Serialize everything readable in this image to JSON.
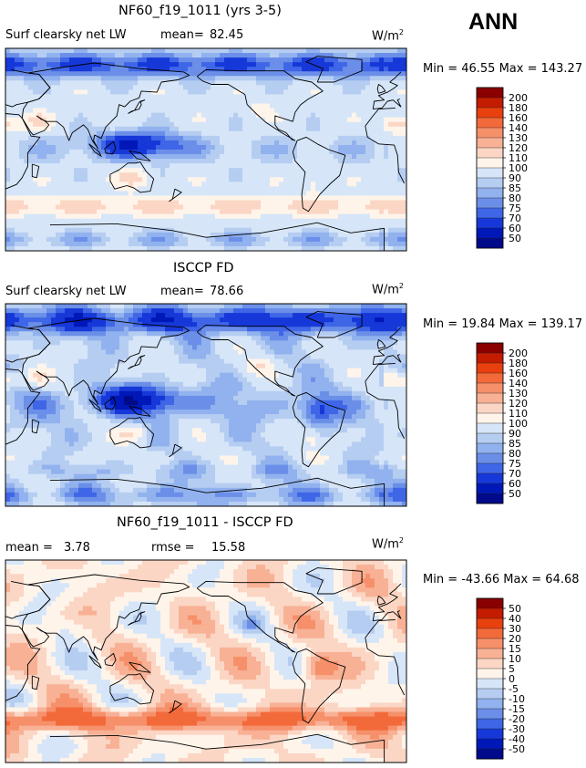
{
  "season": "ANN",
  "chart_data": [
    {
      "type": "heatmap",
      "title": "NF60_f19_1011 (yrs 3-5)",
      "variable": "Surf clearsky net LW",
      "mean_label": "mean=",
      "mean": "82.45",
      "units": "W/m",
      "units_sup": "2",
      "minmax": "Min =  46.55 Max = 143.27",
      "levels": [
        "200",
        "180",
        "160",
        "140",
        "130",
        "120",
        "110",
        "100",
        "90",
        "85",
        "80",
        "75",
        "70",
        "60",
        "50"
      ],
      "colors": [
        "#8a0000",
        "#c41c00",
        "#e8400e",
        "#f36a3a",
        "#f6906a",
        "#f8b195",
        "#fbd6c4",
        "#fff4ea",
        "#d6e6f8",
        "#b6cdf2",
        "#91b2ee",
        "#6b8fe8",
        "#3f66e6",
        "#1738d8",
        "#0018b8",
        "#000a8a"
      ],
      "field": "abs"
    },
    {
      "type": "heatmap",
      "title": "ISCCP FD",
      "variable": "Surf clearsky net LW",
      "mean_label": "mean=",
      "mean": "78.66",
      "units": "W/m",
      "units_sup": "2",
      "minmax": "Min =  19.84 Max = 139.17",
      "levels": [
        "200",
        "180",
        "160",
        "140",
        "130",
        "120",
        "110",
        "100",
        "90",
        "85",
        "80",
        "75",
        "70",
        "60",
        "50"
      ],
      "colors": [
        "#8a0000",
        "#c41c00",
        "#e8400e",
        "#f36a3a",
        "#f6906a",
        "#f8b195",
        "#fbd6c4",
        "#fff4ea",
        "#d6e6f8",
        "#b6cdf2",
        "#91b2ee",
        "#6b8fe8",
        "#3f66e6",
        "#1738d8",
        "#0018b8",
        "#000a8a"
      ],
      "field": "obs"
    },
    {
      "type": "heatmap",
      "title": "NF60_f19_1011 - ISCCP FD",
      "mean_label": "mean =",
      "mean": "3.78",
      "rmse_label": "rmse =",
      "rmse": "15.58",
      "units": "W/m",
      "units_sup": "2",
      "minmax": "Min = -43.66 Max =  64.68",
      "levels": [
        "50",
        "40",
        "30",
        "20",
        "15",
        "10",
        "5",
        "0",
        "-5",
        "-10",
        "-15",
        "-20",
        "-30",
        "-40",
        "-50"
      ],
      "colors": [
        "#8a0000",
        "#c41c00",
        "#e8400e",
        "#f36a3a",
        "#f6906a",
        "#f8b195",
        "#fbd6c4",
        "#fff4ea",
        "#d6e6f8",
        "#b6cdf2",
        "#91b2ee",
        "#6b8fe8",
        "#3f66e6",
        "#1738d8",
        "#0018b8",
        "#000a8a"
      ],
      "field": "diff"
    }
  ]
}
